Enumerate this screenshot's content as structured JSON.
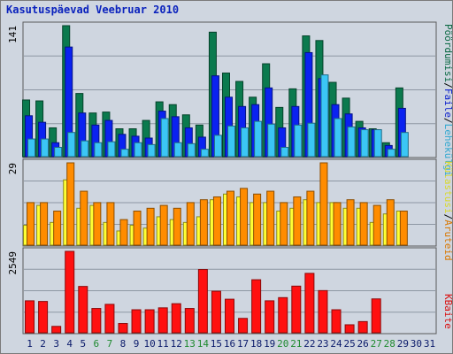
{
  "title": "Kasutuspäevad Veebruar 2010",
  "colors": {
    "hits": "#0b7a4e",
    "files": "#0a22f0",
    "pages": "#3bc6f5",
    "visits": "#ff8c00",
    "sites": "#ffff33",
    "kbytes": "#ff1010",
    "weekday_label": "#0a1a6a",
    "weekend_label": "#1f8a30"
  },
  "chart_data": [
    {
      "type": "bar",
      "panel": "top",
      "ymax_label": "141",
      "ylim": [
        0,
        141
      ],
      "x": [
        1,
        2,
        3,
        4,
        5,
        6,
        7,
        8,
        9,
        10,
        11,
        12,
        13,
        14,
        15,
        16,
        17,
        18,
        19,
        20,
        21,
        22,
        23,
        24,
        25,
        26,
        27,
        28,
        29,
        30,
        31
      ],
      "series": [
        {
          "name": "Pöördumisi",
          "key": "hits",
          "values": [
            61,
            60,
            31,
            141,
            68,
            47,
            48,
            30,
            30,
            39,
            59,
            56,
            45,
            34,
            134,
            90,
            81,
            64,
            100,
            53,
            73,
            130,
            125,
            80,
            63,
            38,
            30,
            15,
            74,
            null,
            null
          ]
        },
        {
          "name": "Faile",
          "key": "files",
          "values": [
            44,
            37,
            15,
            118,
            47,
            34,
            39,
            24,
            22,
            20,
            49,
            43,
            31,
            21,
            87,
            64,
            54,
            56,
            74,
            31,
            54,
            112,
            84,
            56,
            46,
            31,
            29,
            12,
            52,
            null,
            null
          ]
        },
        {
          "name": "Lehekülgi",
          "key": "pages",
          "values": [
            19,
            19,
            10,
            26,
            17,
            15,
            16,
            8,
            15,
            13,
            41,
            15,
            14,
            8,
            23,
            33,
            31,
            38,
            35,
            10,
            34,
            36,
            88,
            41,
            32,
            29,
            29,
            8,
            26,
            null,
            null
          ]
        }
      ]
    },
    {
      "type": "bar",
      "panel": "middle",
      "ymax_label": "29",
      "ylim": [
        0,
        29
      ],
      "x": [
        1,
        2,
        3,
        4,
        5,
        6,
        7,
        8,
        9,
        10,
        11,
        12,
        13,
        14,
        15,
        16,
        17,
        18,
        19,
        20,
        21,
        22,
        23,
        24,
        25,
        26,
        27,
        28,
        29,
        30,
        31
      ],
      "series": [
        {
          "name": "Külastusi",
          "key": "sites",
          "values": [
            7,
            14,
            8,
            23,
            13,
            14,
            8,
            5,
            7,
            6,
            10,
            9,
            8,
            10,
            16,
            18,
            17,
            15,
            15,
            12,
            13,
            16,
            15,
            15,
            13,
            13,
            8,
            11,
            12,
            null,
            null
          ]
        },
        {
          "name": "Aruteid",
          "key": "visits",
          "values": [
            15,
            15,
            12,
            29,
            19,
            15,
            15,
            9,
            12,
            13,
            14,
            13,
            15,
            16,
            17,
            19,
            20,
            18,
            19,
            15,
            17,
            19,
            29,
            15,
            16,
            15,
            14,
            16,
            12,
            null,
            null
          ]
        }
      ]
    },
    {
      "type": "bar",
      "panel": "bottom",
      "ymax_label": "2549",
      "ylim": [
        0,
        2549
      ],
      "x": [
        1,
        2,
        3,
        4,
        5,
        6,
        7,
        8,
        9,
        10,
        11,
        12,
        13,
        14,
        15,
        16,
        17,
        18,
        19,
        20,
        21,
        22,
        23,
        24,
        25,
        26,
        27,
        28,
        29,
        30,
        31
      ],
      "series": [
        {
          "name": "KBaite",
          "key": "kbytes",
          "values": [
            1000,
            980,
            200,
            2549,
            1450,
            760,
            890,
            290,
            720,
            720,
            780,
            910,
            760,
            1980,
            1300,
            1050,
            450,
            1660,
            1000,
            1100,
            1460,
            1860,
            1320,
            720,
            250,
            350,
            1060,
            null,
            null,
            null,
            null
          ]
        }
      ]
    }
  ],
  "x_labels": [
    "1",
    "2",
    "3",
    "4",
    "5",
    "6",
    "7",
    "8",
    "9",
    "10",
    "11",
    "12",
    "13",
    "14",
    "15",
    "16",
    "17",
    "18",
    "19",
    "20",
    "21",
    "22",
    "23",
    "24",
    "25",
    "26",
    "27",
    "28",
    "29",
    "30",
    "31"
  ],
  "weekend_days": [
    6,
    7,
    13,
    14,
    20,
    21,
    27,
    28
  ],
  "legend_top": [
    {
      "text": "Pöördumisi",
      "key": "hits"
    },
    {
      "text": "/",
      "key": "slash"
    },
    {
      "text": "Faile",
      "key": "files"
    },
    {
      "text": "/",
      "key": "slash"
    },
    {
      "text": "Lehekülgi",
      "key": "pages"
    }
  ],
  "legend_middle": [
    {
      "text": "Külastusi",
      "key": "sites"
    },
    {
      "text": "/",
      "key": "slash"
    },
    {
      "text": "Aruteid",
      "key": "visits"
    }
  ],
  "legend_bottom": [
    {
      "text": "KBaite",
      "key": "kbytes"
    }
  ]
}
